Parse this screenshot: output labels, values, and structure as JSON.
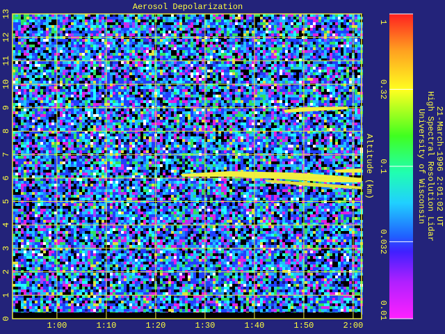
{
  "chart_data": {
    "type": "heatmap",
    "title": "Aerosol Depolarization",
    "y_label": "Altitude (km)",
    "xlim": [
      51,
      121.7
    ],
    "xticks": [
      {
        "value": 60,
        "label": "1:00"
      },
      {
        "value": 70,
        "label": "1:10"
      },
      {
        "value": 80,
        "label": "1:20"
      },
      {
        "value": 90,
        "label": "1:30"
      },
      {
        "value": 100,
        "label": "1:40"
      },
      {
        "value": 110,
        "label": "1:50"
      },
      {
        "value": 120,
        "label": "2:00"
      }
    ],
    "ylim": [
      0,
      13
    ],
    "yticks": [
      0,
      1,
      2,
      3,
      4,
      5,
      6,
      7,
      8,
      9,
      10,
      11,
      12,
      13
    ],
    "grid": true,
    "grid_color": "#e8e840",
    "colorbar": {
      "scale": "log",
      "lim": [
        0.01,
        1
      ],
      "ticks": [
        1,
        0.32,
        0.1,
        0.032,
        0.01
      ]
    }
  },
  "annotations": [
    "University of Wisconsin",
    "High Spectral Resolution Lidar",
    "21-March-1996  2:01:02 UT"
  ]
}
